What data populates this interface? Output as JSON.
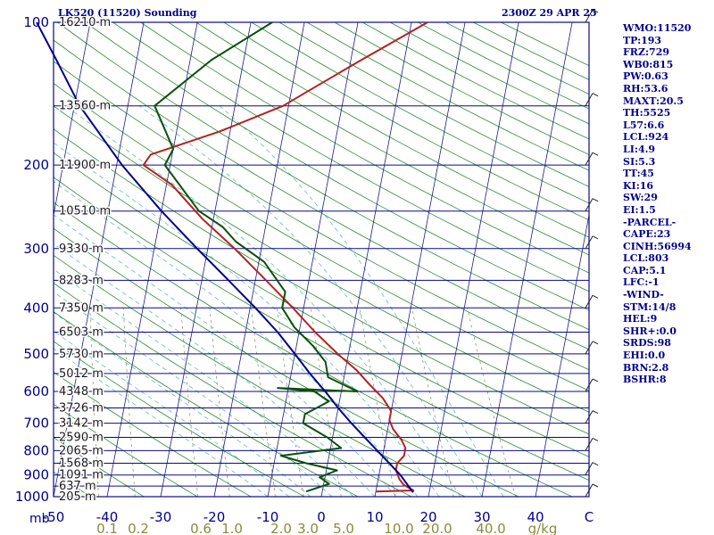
{
  "header": {
    "station": "LK520 (11520) Sounding",
    "time": "2300Z 29 APR 25"
  },
  "stats": [
    "WMO:11520",
    "TP:193",
    "FRZ:729",
    "WB0:815",
    "PW:0.63",
    "RH:53.6",
    "MAXT:20.5",
    "TH:5525",
    "L57:6.6",
    "LCL:924",
    "LI:4.9",
    "SI:5.3",
    "TT:45",
    "KI:16",
    "SW:29",
    "EI:1.5",
    "-PARCEL-",
    "CAPE:23",
    "CINH:56994",
    "LCL:803",
    "CAP:5.1",
    "LFC:-1",
    "-WIND-",
    "STM:14/8",
    "HEL:9",
    "SHR+:0.0",
    "SRDS:98",
    "EHI:0.0",
    "BRN:2.8",
    "BSHR:8"
  ],
  "chart_data": {
    "type": "line",
    "title": "LK520 (11520) Sounding",
    "subtitle": "2300Z 29 APR 25",
    "xlabel": "",
    "ylabel": "",
    "xlim": [
      -50,
      50
    ],
    "ylim": [
      1000,
      100
    ],
    "y_scale": "log",
    "y_unit_label": "mb",
    "x_ticks": [
      "-50",
      "-40",
      "-30",
      "-20",
      "-10",
      "0",
      "10",
      "20",
      "30",
      "40",
      "C"
    ],
    "y_ticks": [
      "100",
      "200",
      "300",
      "400",
      "500",
      "600",
      "700",
      "800",
      "900",
      "1000"
    ],
    "mixing_ratio_labels": [
      "0.1",
      "0.2",
      "0.6",
      "1.0",
      "2.0",
      "3.0",
      "5.0",
      "10.0",
      "20.0",
      "40.0",
      "g/kg"
    ],
    "height_labels": [
      {
        "p": 100,
        "label": "16210 m"
      },
      {
        "p": 150,
        "label": "13560 m"
      },
      {
        "p": 200,
        "label": "11900 m"
      },
      {
        "p": 250,
        "label": "10510 m"
      },
      {
        "p": 300,
        "label": "9330 m"
      },
      {
        "p": 350,
        "label": "8283 m"
      },
      {
        "p": 400,
        "label": "7350 m"
      },
      {
        "p": 450,
        "label": "6503 m"
      },
      {
        "p": 500,
        "label": "5730 m"
      },
      {
        "p": 550,
        "label": "5012 m"
      },
      {
        "p": 600,
        "label": "4348 m"
      },
      {
        "p": 650,
        "label": "3726 m"
      },
      {
        "p": 700,
        "label": "3142 m"
      },
      {
        "p": 750,
        "label": "2590 m"
      },
      {
        "p": 800,
        "label": "2065 m"
      },
      {
        "p": 850,
        "label": "1568 m"
      },
      {
        "p": 900,
        "label": "1091 m"
      },
      {
        "p": 950,
        "label": "637 m"
      },
      {
        "p": 1000,
        "label": "205 m"
      }
    ],
    "series": [
      {
        "color": "#b22222",
        "points": [
          [
            975,
            10
          ],
          [
            970,
            17
          ],
          [
            945,
            15
          ],
          [
            920,
            14
          ],
          [
            880,
            13
          ],
          [
            850,
            13
          ],
          [
            820,
            14
          ],
          [
            790,
            14
          ],
          [
            760,
            13
          ],
          [
            720,
            11
          ],
          [
            690,
            10
          ],
          [
            660,
            10
          ],
          [
            620,
            8
          ],
          [
            580,
            5
          ],
          [
            540,
            2
          ],
          [
            500,
            -2
          ],
          [
            450,
            -7
          ],
          [
            400,
            -12
          ],
          [
            350,
            -18
          ],
          [
            300,
            -25
          ],
          [
            260,
            -32
          ],
          [
            220,
            -39
          ],
          [
            200,
            -45
          ],
          [
            190,
            -44
          ],
          [
            170,
            -32
          ],
          [
            150,
            -21
          ],
          [
            140,
            -17
          ],
          [
            120,
            -8
          ],
          [
            100,
            3
          ]
        ]
      },
      {
        "color": "#0b4f0b",
        "points": [
          [
            975,
            -3
          ],
          [
            940,
            1
          ],
          [
            910,
            -1
          ],
          [
            880,
            2
          ],
          [
            850,
            -4
          ],
          [
            820,
            -9
          ],
          [
            790,
            2
          ],
          [
            750,
            -1
          ],
          [
            700,
            -6
          ],
          [
            670,
            -6
          ],
          [
            630,
            -2
          ],
          [
            600,
            -5
          ],
          [
            590,
            -12
          ],
          [
            600,
            3
          ],
          [
            560,
            -3
          ],
          [
            520,
            -4
          ],
          [
            480,
            -7
          ],
          [
            440,
            -11
          ],
          [
            400,
            -14
          ],
          [
            370,
            -14
          ],
          [
            320,
            -19
          ],
          [
            290,
            -25
          ],
          [
            270,
            -28
          ],
          [
            250,
            -33
          ],
          [
            200,
            -41
          ],
          [
            185,
            -40
          ],
          [
            150,
            -45
          ],
          [
            120,
            -36
          ],
          [
            100,
            -26
          ]
        ]
      },
      {
        "color": "#00008b",
        "points": [
          [
            980,
            17
          ],
          [
            900,
            14
          ],
          [
            803,
            9
          ],
          [
            750,
            6
          ],
          [
            700,
            3
          ],
          [
            650,
            0
          ],
          [
            600,
            -3
          ],
          [
            550,
            -6.5
          ],
          [
            500,
            -10
          ],
          [
            450,
            -14
          ],
          [
            400,
            -19
          ],
          [
            350,
            -25
          ],
          [
            300,
            -32
          ],
          [
            250,
            -40
          ],
          [
            200,
            -49
          ],
          [
            150,
            -59
          ],
          [
            120,
            -65
          ],
          [
            100,
            -70
          ]
        ]
      }
    ]
  }
}
